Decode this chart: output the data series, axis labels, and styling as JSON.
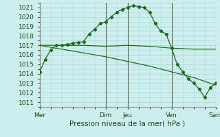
{
  "bg_color": "#ceeeed",
  "grid_color": "#a8d8d8",
  "line_color": "#1a6b1a",
  "vline_color": "#556655",
  "title": "Pression niveau de la mer( hPa )",
  "ylim": [
    1010.5,
    1021.5
  ],
  "yticks": [
    1011,
    1012,
    1013,
    1014,
    1015,
    1016,
    1017,
    1018,
    1019,
    1020,
    1021
  ],
  "xtick_pos": [
    0,
    72,
    96,
    144,
    192
  ],
  "xtick_labels": [
    "Mer",
    "Dim",
    "Jeu",
    "Ven",
    "Sam"
  ],
  "vline_positions": [
    0,
    72,
    96,
    144,
    192
  ],
  "line1_x": [
    0,
    6,
    12,
    18,
    24,
    30,
    36,
    42,
    48,
    54,
    60,
    66,
    72,
    78,
    84,
    90,
    96,
    102,
    108,
    114,
    120,
    126,
    132,
    138,
    144,
    150,
    156,
    162,
    168,
    174,
    180,
    186,
    192
  ],
  "line1_y": [
    1014.2,
    1015.5,
    1016.5,
    1017.0,
    1017.0,
    1017.1,
    1017.2,
    1017.3,
    1017.4,
    1018.2,
    1018.7,
    1019.3,
    1019.5,
    1020.0,
    1020.5,
    1020.8,
    1021.0,
    1021.2,
    1021.1,
    1021.0,
    1020.5,
    1019.3,
    1018.5,
    1018.2,
    1016.7,
    1015.0,
    1014.2,
    1013.5,
    1013.0,
    1012.4,
    1011.5,
    1012.5,
    1013.0
  ],
  "line2_x": [
    0,
    24,
    48,
    72,
    96,
    120,
    144,
    168,
    192
  ],
  "line2_y": [
    1017.0,
    1017.0,
    1017.0,
    1016.9,
    1017.0,
    1016.9,
    1016.7,
    1016.6,
    1016.6
  ],
  "line3_x": [
    0,
    24,
    48,
    72,
    96,
    120,
    144,
    168,
    192
  ],
  "line3_y": [
    1017.0,
    1016.6,
    1016.2,
    1015.8,
    1015.3,
    1014.8,
    1014.2,
    1013.6,
    1012.8
  ]
}
